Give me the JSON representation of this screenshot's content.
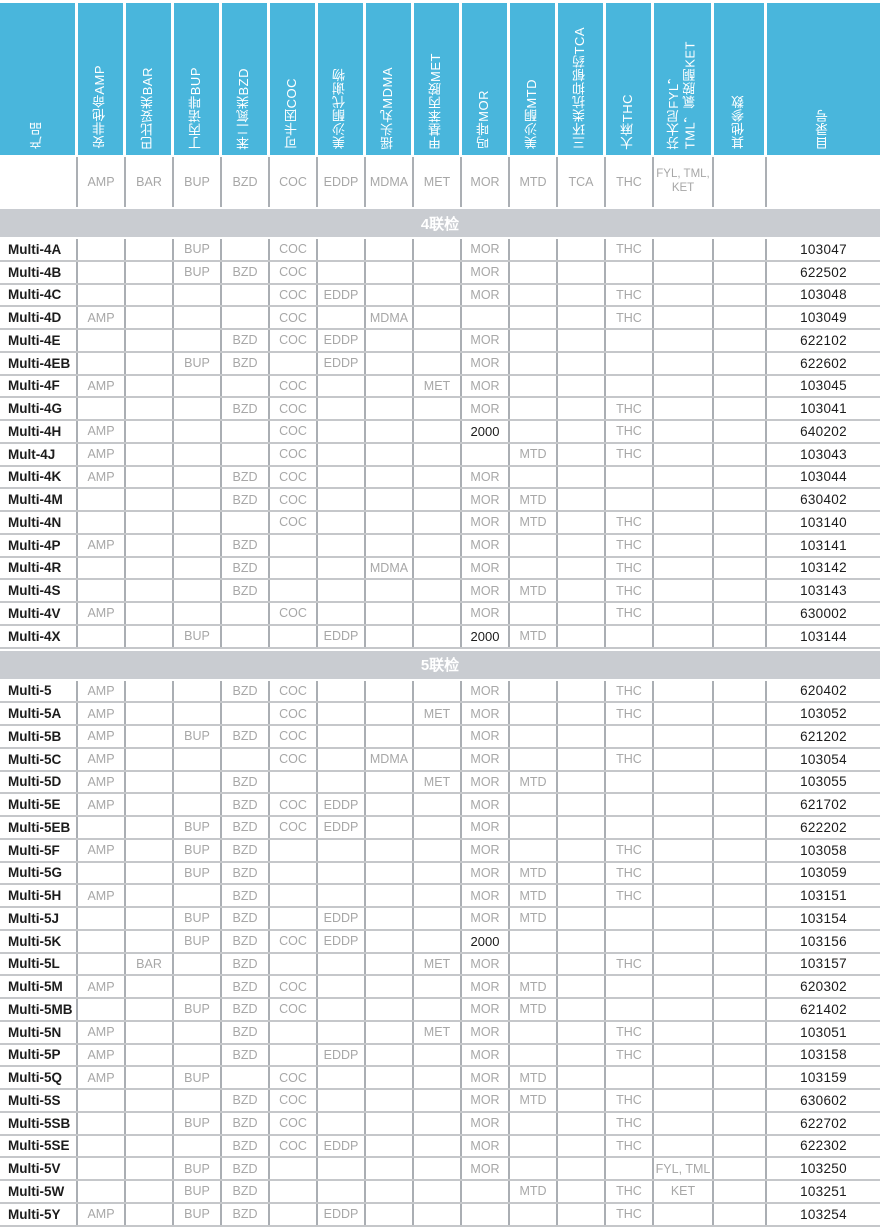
{
  "colors": {
    "header_blue": "#49B6DC",
    "section_bar_gray": "#C9CCD1",
    "code_text_gray": "#A7A7A7"
  },
  "columns": [
    {
      "key": "PRODUCT",
      "title": "产品",
      "code": ""
    },
    {
      "key": "AMP",
      "title": "安非他命AMP",
      "code": "AMP"
    },
    {
      "key": "BAR",
      "title": "巴比妥类BAR",
      "code": "BAR"
    },
    {
      "key": "BUP",
      "title": "丁丙诺啡BUP",
      "code": "BUP"
    },
    {
      "key": "BZD",
      "title": "苯二氮类BZD",
      "code": "BZD"
    },
    {
      "key": "COC",
      "title": "可卡因COC",
      "code": "COC"
    },
    {
      "key": "EDDP",
      "title": "美沙酮代谢物",
      "code": "EDDP"
    },
    {
      "key": "MDMA",
      "title": "摇头丸MDMA",
      "code": "MDMA"
    },
    {
      "key": "MET",
      "title": "甲基苯丙胺MET",
      "code": "MET"
    },
    {
      "key": "MOR",
      "title": "吗啡MOR",
      "code": "MOR"
    },
    {
      "key": "MTD",
      "title": "美沙酮MTD",
      "code": "MTD"
    },
    {
      "key": "TCA",
      "title": "三环类抗抑郁药TCA",
      "code": "TCA"
    },
    {
      "key": "THC",
      "title": "大麻THC",
      "code": "THC"
    },
    {
      "key": "FYL",
      "title": "芬太尼FYL，\nTML，氯胺酮KET",
      "code": "FYL, TML,\nKET"
    },
    {
      "key": "OTHER",
      "title": "其他参数",
      "code": ""
    },
    {
      "key": "CAT",
      "title": "目录号",
      "code": ""
    }
  ],
  "sections": [
    {
      "title": "4联检",
      "rows": [
        {
          "product": "Multi-4A",
          "analytes": {
            "BUP": "BUP",
            "COC": "COC",
            "MOR": "MOR",
            "THC": "THC"
          },
          "catalog": "103047"
        },
        {
          "product": "Multi-4B",
          "analytes": {
            "BUP": "BUP",
            "BZD": "BZD",
            "COC": "COC",
            "MOR": "MOR"
          },
          "catalog": "622502"
        },
        {
          "product": "Multi-4C",
          "analytes": {
            "COC": "COC",
            "EDDP": "EDDP",
            "MOR": "MOR",
            "THC": "THC"
          },
          "catalog": "103048"
        },
        {
          "product": "Multi-4D",
          "analytes": {
            "AMP": "AMP",
            "COC": "COC",
            "MDMA": "MDMA",
            "THC": "THC"
          },
          "catalog": "103049"
        },
        {
          "product": "Multi-4E",
          "analytes": {
            "BZD": "BZD",
            "COC": "COC",
            "EDDP": "EDDP",
            "MOR": "MOR"
          },
          "catalog": "622102"
        },
        {
          "product": "Multi-4EB",
          "analytes": {
            "BUP": "BUP",
            "BZD": "BZD",
            "EDDP": "EDDP",
            "MOR": "MOR"
          },
          "catalog": "622602"
        },
        {
          "product": "Multi-4F",
          "analytes": {
            "AMP": "AMP",
            "COC": "COC",
            "MET": "MET",
            "MOR": "MOR"
          },
          "catalog": "103045"
        },
        {
          "product": "Multi-4G",
          "analytes": {
            "BZD": "BZD",
            "COC": "COC",
            "MOR": "MOR",
            "THC": "THC"
          },
          "catalog": "103041"
        },
        {
          "product": "Multi-4H",
          "analytes": {
            "AMP": "AMP",
            "COC": "COC",
            "MOR": "2000",
            "THC": "THC"
          },
          "catalog": "640202"
        },
        {
          "product": "Mult-4J",
          "analytes": {
            "AMP": "AMP",
            "COC": "COC",
            "MTD": "MTD",
            "THC": "THC"
          },
          "catalog": "103043"
        },
        {
          "product": "Multi-4K",
          "analytes": {
            "AMP": "AMP",
            "BZD": "BZD",
            "COC": "COC",
            "MOR": "MOR"
          },
          "catalog": "103044"
        },
        {
          "product": "Multi-4M",
          "analytes": {
            "BZD": "BZD",
            "COC": "COC",
            "MOR": "MOR",
            "MTD": "MTD"
          },
          "catalog": "630402"
        },
        {
          "product": "Multi-4N",
          "analytes": {
            "COC": "COC",
            "MOR": "MOR",
            "MTD": "MTD",
            "THC": "THC"
          },
          "catalog": "103140"
        },
        {
          "product": "Multi-4P",
          "analytes": {
            "AMP": "AMP",
            "BZD": "BZD",
            "MOR": "MOR",
            "THC": "THC"
          },
          "catalog": "103141"
        },
        {
          "product": "Multi-4R",
          "analytes": {
            "BZD": "BZD",
            "MDMA": "MDMA",
            "MOR": "MOR",
            "THC": "THC"
          },
          "catalog": "103142"
        },
        {
          "product": "Multi-4S",
          "analytes": {
            "BZD": "BZD",
            "MOR": "MOR",
            "MTD": "MTD",
            "THC": "THC"
          },
          "catalog": "103143"
        },
        {
          "product": "Multi-4V",
          "analytes": {
            "AMP": "AMP",
            "COC": "COC",
            "MOR": "MOR",
            "THC": "THC"
          },
          "catalog": "630002"
        },
        {
          "product": "Multi-4X",
          "analytes": {
            "BUP": "BUP",
            "EDDP": "EDDP",
            "MOR": "2000",
            "MTD": "MTD"
          },
          "catalog": "103144"
        }
      ]
    },
    {
      "title": "5联检",
      "rows": [
        {
          "product": "Multi-5",
          "analytes": {
            "AMP": "AMP",
            "BZD": "BZD",
            "COC": "COC",
            "MOR": "MOR",
            "THC": "THC"
          },
          "catalog": "620402"
        },
        {
          "product": "Multi-5A",
          "analytes": {
            "AMP": "AMP",
            "COC": "COC",
            "MET": "MET",
            "MOR": "MOR",
            "THC": "THC"
          },
          "catalog": "103052"
        },
        {
          "product": "Multi-5B",
          "analytes": {
            "AMP": "AMP",
            "BUP": "BUP",
            "BZD": "BZD",
            "COC": "COC",
            "MOR": "MOR"
          },
          "catalog": "621202"
        },
        {
          "product": "Multi-5C",
          "analytes": {
            "AMP": "AMP",
            "COC": "COC",
            "MDMA": "MDMA",
            "MOR": "MOR",
            "THC": "THC"
          },
          "catalog": "103054"
        },
        {
          "product": "Multi-5D",
          "analytes": {
            "AMP": "AMP",
            "BZD": "BZD",
            "MET": "MET",
            "MOR": "MOR",
            "MTD": "MTD"
          },
          "catalog": "103055"
        },
        {
          "product": "Multi-5E",
          "analytes": {
            "AMP": "AMP",
            "BZD": "BZD",
            "COC": "COC",
            "EDDP": "EDDP",
            "MOR": "MOR"
          },
          "catalog": "621702"
        },
        {
          "product": "Multi-5EB",
          "analytes": {
            "BUP": "BUP",
            "BZD": "BZD",
            "COC": "COC",
            "EDDP": "EDDP",
            "MOR": "MOR"
          },
          "catalog": "622202"
        },
        {
          "product": "Multi-5F",
          "analytes": {
            "AMP": "AMP",
            "BUP": "BUP",
            "BZD": "BZD",
            "MOR": "MOR",
            "THC": "THC"
          },
          "catalog": "103058"
        },
        {
          "product": "Multi-5G",
          "analytes": {
            "BUP": "BUP",
            "BZD": "BZD",
            "MOR": "MOR",
            "MTD": "MTD",
            "THC": "THC"
          },
          "catalog": "103059"
        },
        {
          "product": "Multi-5H",
          "analytes": {
            "AMP": "AMP",
            "BZD": "BZD",
            "MOR": "MOR",
            "MTD": "MTD",
            "THC": "THC"
          },
          "catalog": "103151"
        },
        {
          "product": "Multi-5J",
          "analytes": {
            "BUP": "BUP",
            "BZD": "BZD",
            "EDDP": "EDDP",
            "MOR": "MOR",
            "MTD": "MTD"
          },
          "catalog": "103154"
        },
        {
          "product": "Multi-5K",
          "analytes": {
            "BUP": "BUP",
            "BZD": "BZD",
            "COC": "COC",
            "EDDP": "EDDP",
            "MOR": "2000"
          },
          "catalog": "103156"
        },
        {
          "product": "Multi-5L",
          "analytes": {
            "BAR": "BAR",
            "BZD": "BZD",
            "MET": "MET",
            "MOR": "MOR",
            "THC": "THC"
          },
          "catalog": "103157"
        },
        {
          "product": "Multi-5M",
          "analytes": {
            "AMP": "AMP",
            "BZD": "BZD",
            "COC": "COC",
            "MOR": "MOR",
            "MTD": "MTD"
          },
          "catalog": "620302"
        },
        {
          "product": "Multi-5MB",
          "analytes": {
            "BUP": "BUP",
            "BZD": "BZD",
            "COC": "COC",
            "MOR": "MOR",
            "MTD": "MTD"
          },
          "catalog": "621402"
        },
        {
          "product": "Multi-5N",
          "analytes": {
            "AMP": "AMP",
            "BZD": "BZD",
            "MET": "MET",
            "MOR": "MOR",
            "THC": "THC"
          },
          "catalog": "103051"
        },
        {
          "product": "Multi-5P",
          "analytes": {
            "AMP": "AMP",
            "BZD": "BZD",
            "EDDP": "EDDP",
            "MOR": "MOR",
            "THC": "THC"
          },
          "catalog": "103158"
        },
        {
          "product": "Multi-5Q",
          "analytes": {
            "AMP": "AMP",
            "BUP": "BUP",
            "COC": "COC",
            "MOR": "MOR",
            "MTD": "MTD"
          },
          "catalog": "103159"
        },
        {
          "product": "Multi-5S",
          "analytes": {
            "BZD": "BZD",
            "COC": "COC",
            "MOR": "MOR",
            "MTD": "MTD",
            "THC": "THC"
          },
          "catalog": "630602"
        },
        {
          "product": "Multi-5SB",
          "analytes": {
            "BUP": "BUP",
            "BZD": "BZD",
            "COC": "COC",
            "MOR": "MOR",
            "THC": "THC"
          },
          "catalog": "622702"
        },
        {
          "product": "Multi-5SE",
          "analytes": {
            "BZD": "BZD",
            "COC": "COC",
            "EDDP": "EDDP",
            "MOR": "MOR",
            "THC": "THC"
          },
          "catalog": "622302"
        },
        {
          "product": "Multi-5V",
          "analytes": {
            "BUP": "BUP",
            "BZD": "BZD",
            "MOR": "MOR",
            "FYL": "FYL, TML"
          },
          "catalog": "103250"
        },
        {
          "product": "Multi-5W",
          "analytes": {
            "BUP": "BUP",
            "BZD": "BZD",
            "MTD": "MTD",
            "THC": "THC",
            "FYL": "KET"
          },
          "catalog": "103251"
        },
        {
          "product": "Multi-5Y",
          "analytes": {
            "AMP": "AMP",
            "BUP": "BUP",
            "BZD": "BZD",
            "EDDP": "EDDP",
            "THC": "THC"
          },
          "catalog": "103254"
        }
      ]
    }
  ]
}
